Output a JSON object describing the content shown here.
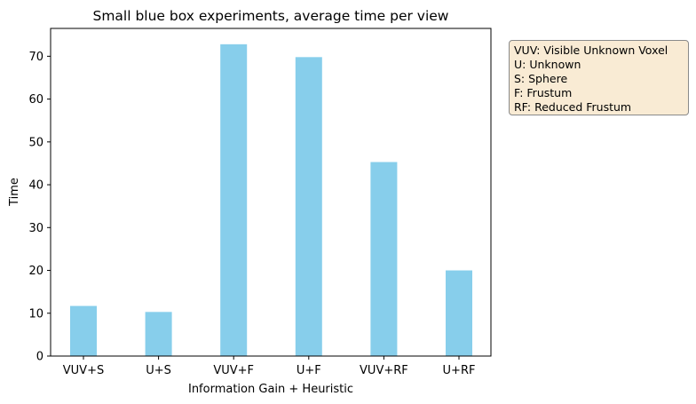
{
  "chart_data": {
    "type": "bar",
    "title": "Small blue box experiments, average time per view",
    "xlabel": "Information Gain + Heuristic",
    "ylabel": "Time",
    "categories": [
      "VUV+S",
      "U+S",
      "VUV+F",
      "U+F",
      "VUV+RF",
      "U+RF"
    ],
    "values": [
      11.7,
      10.3,
      72.8,
      69.8,
      45.3,
      20.0
    ],
    "ylim": [
      0,
      76.5
    ],
    "yticks": [
      0,
      10,
      20,
      30,
      40,
      50,
      60,
      70
    ],
    "bar_color": "#87ceeb",
    "grid": false,
    "legend": "none"
  },
  "notes": {
    "placement": "right, outside plot",
    "lines": [
      "VUV: Visible Unknown Voxel",
      "U: Unknown",
      "S: Sphere",
      "F: Frustum",
      "RF: Reduced Frustum"
    ]
  }
}
